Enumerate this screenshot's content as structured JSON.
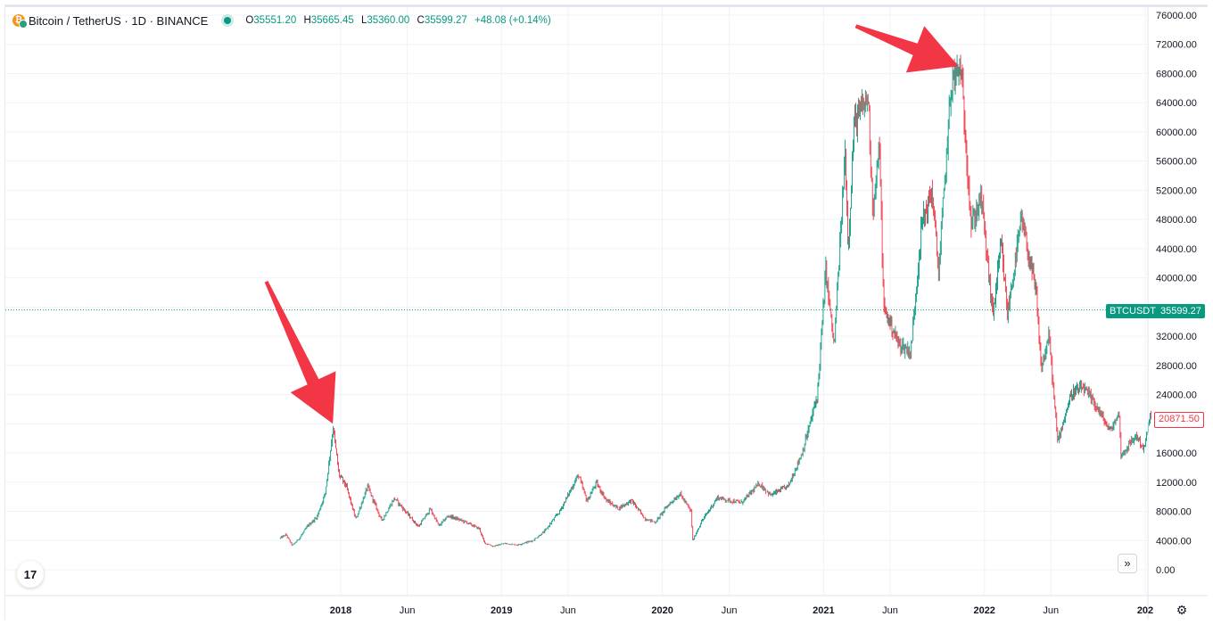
{
  "header": {
    "symbol": "Bitcoin / TetherUS · 1D · BINANCE",
    "ohlc": {
      "o_label": "O",
      "o": "35551.20",
      "h_label": "H",
      "h": "35665.45",
      "l_label": "L",
      "l": "35360.00",
      "c_label": "C",
      "c": "35599.27",
      "change": "+48.08 (+0.14%)"
    }
  },
  "price_tags": {
    "symbol": "BTCUSDT",
    "last": "35599.27",
    "prev": "20871.50"
  },
  "logo_text": "17",
  "icons": {
    "scroll": "double-chevron-right-icon",
    "settings": "gear-icon",
    "coin": "bitcoin-icon"
  },
  "colors": {
    "up": "#089981",
    "down": "#f23645",
    "arrow": "#f23645",
    "grid": "#f0f3fa"
  },
  "chart_data": {
    "type": "candlestick",
    "title": "",
    "ylim": [
      0,
      76000
    ],
    "y_ticks": [
      "76000.00",
      "72000.00",
      "68000.00",
      "64000.00",
      "60000.00",
      "56000.00",
      "52000.00",
      "48000.00",
      "44000.00",
      "40000.00",
      "36000.00",
      "32000.00",
      "28000.00",
      "24000.00",
      "20000.00",
      "16000.00",
      "12000.00",
      "8000.00",
      "4000.00",
      "0.00"
    ],
    "x_ticks": [
      {
        "label": "2018",
        "date": "2018-01-01",
        "bold": true
      },
      {
        "label": "Jun",
        "date": "2018-06-01",
        "bold": false
      },
      {
        "label": "2019",
        "date": "2019-01-01",
        "bold": true
      },
      {
        "label": "Jun",
        "date": "2019-06-01",
        "bold": false
      },
      {
        "label": "2020",
        "date": "2020-01-01",
        "bold": true
      },
      {
        "label": "Jun",
        "date": "2020-06-01",
        "bold": false
      },
      {
        "label": "2021",
        "date": "2021-01-01",
        "bold": true
      },
      {
        "label": "Jun",
        "date": "2021-06-01",
        "bold": false
      },
      {
        "label": "2022",
        "date": "2022-01-01",
        "bold": true
      },
      {
        "label": "Jun",
        "date": "2022-06-01",
        "bold": false
      },
      {
        "label": "202",
        "date": "2023-01-01",
        "bold": true
      }
    ],
    "price_path": [
      [
        "2017-08-17",
        4300
      ],
      [
        "2017-09-01",
        4800
      ],
      [
        "2017-09-15",
        3300
      ],
      [
        "2017-10-01",
        4300
      ],
      [
        "2017-10-20",
        6000
      ],
      [
        "2017-11-10",
        7200
      ],
      [
        "2017-11-29",
        10500
      ],
      [
        "2017-12-17",
        19500
      ],
      [
        "2017-12-30",
        13000
      ],
      [
        "2018-01-15",
        11500
      ],
      [
        "2018-02-06",
        6900
      ],
      [
        "2018-03-05",
        11400
      ],
      [
        "2018-04-06",
        6700
      ],
      [
        "2018-05-05",
        9800
      ],
      [
        "2018-06-28",
        5900
      ],
      [
        "2018-07-25",
        8300
      ],
      [
        "2018-08-14",
        6000
      ],
      [
        "2018-09-04",
        7400
      ],
      [
        "2018-10-15",
        6500
      ],
      [
        "2018-11-14",
        5600
      ],
      [
        "2018-11-25",
        3700
      ],
      [
        "2018-12-15",
        3200
      ],
      [
        "2019-01-10",
        3600
      ],
      [
        "2019-02-08",
        3400
      ],
      [
        "2019-03-15",
        4000
      ],
      [
        "2019-04-10",
        5200
      ],
      [
        "2019-05-15",
        8000
      ],
      [
        "2019-06-26",
        13000
      ],
      [
        "2019-07-16",
        9400
      ],
      [
        "2019-08-06",
        11900
      ],
      [
        "2019-08-29",
        9500
      ],
      [
        "2019-09-25",
        8400
      ],
      [
        "2019-10-25",
        9500
      ],
      [
        "2019-11-24",
        7000
      ],
      [
        "2019-12-18",
        6500
      ],
      [
        "2020-01-15",
        8800
      ],
      [
        "2020-02-12",
        10400
      ],
      [
        "2020-03-08",
        8000
      ],
      [
        "2020-03-12",
        4000
      ],
      [
        "2020-04-01",
        6600
      ],
      [
        "2020-05-07",
        9900
      ],
      [
        "2020-06-01",
        9500
      ],
      [
        "2020-07-01",
        9200
      ],
      [
        "2020-08-10",
        11800
      ],
      [
        "2020-09-05",
        10200
      ],
      [
        "2020-10-15",
        11500
      ],
      [
        "2020-11-15",
        16000
      ],
      [
        "2020-12-01",
        19500
      ],
      [
        "2020-12-20",
        24000
      ],
      [
        "2021-01-08",
        41000
      ],
      [
        "2021-01-27",
        30500
      ],
      [
        "2021-02-21",
        57000
      ],
      [
        "2021-02-28",
        44000
      ],
      [
        "2021-03-13",
        61000
      ],
      [
        "2021-04-14",
        64800
      ],
      [
        "2021-04-25",
        49000
      ],
      [
        "2021-05-10",
        58000
      ],
      [
        "2021-05-19",
        36000
      ],
      [
        "2021-06-22",
        31000
      ],
      [
        "2021-07-20",
        29800
      ],
      [
        "2021-08-14",
        47500
      ],
      [
        "2021-09-06",
        51800
      ],
      [
        "2021-09-21",
        40600
      ],
      [
        "2021-10-20",
        66900
      ],
      [
        "2021-11-10",
        68800
      ],
      [
        "2021-11-27",
        54000
      ],
      [
        "2021-12-04",
        47000
      ],
      [
        "2021-12-27",
        51000
      ],
      [
        "2022-01-22",
        34900
      ],
      [
        "2022-02-10",
        44500
      ],
      [
        "2022-02-24",
        35000
      ],
      [
        "2022-03-28",
        48000
      ],
      [
        "2022-04-30",
        38000
      ],
      [
        "2022-05-12",
        27500
      ],
      [
        "2022-05-30",
        32000
      ],
      [
        "2022-06-18",
        17600
      ],
      [
        "2022-07-20",
        24200
      ],
      [
        "2022-08-15",
        24900
      ],
      [
        "2022-09-12",
        22600
      ],
      [
        "2022-10-15",
        19000
      ],
      [
        "2022-11-05",
        21400
      ],
      [
        "2022-11-09",
        15600
      ],
      [
        "2022-12-14",
        18400
      ],
      [
        "2022-12-31",
        16500
      ],
      [
        "2023-01-14",
        20871
      ]
    ],
    "price_line": 35599.27,
    "annotations": [
      {
        "type": "arrow",
        "from": [
          "2017-07-16",
          39500
        ],
        "to": [
          "2017-12-14",
          20000
        ]
      },
      {
        "type": "arrow",
        "from": [
          "2021-03-15",
          74500
        ],
        "to": [
          "2021-11-03",
          69000
        ]
      }
    ]
  }
}
